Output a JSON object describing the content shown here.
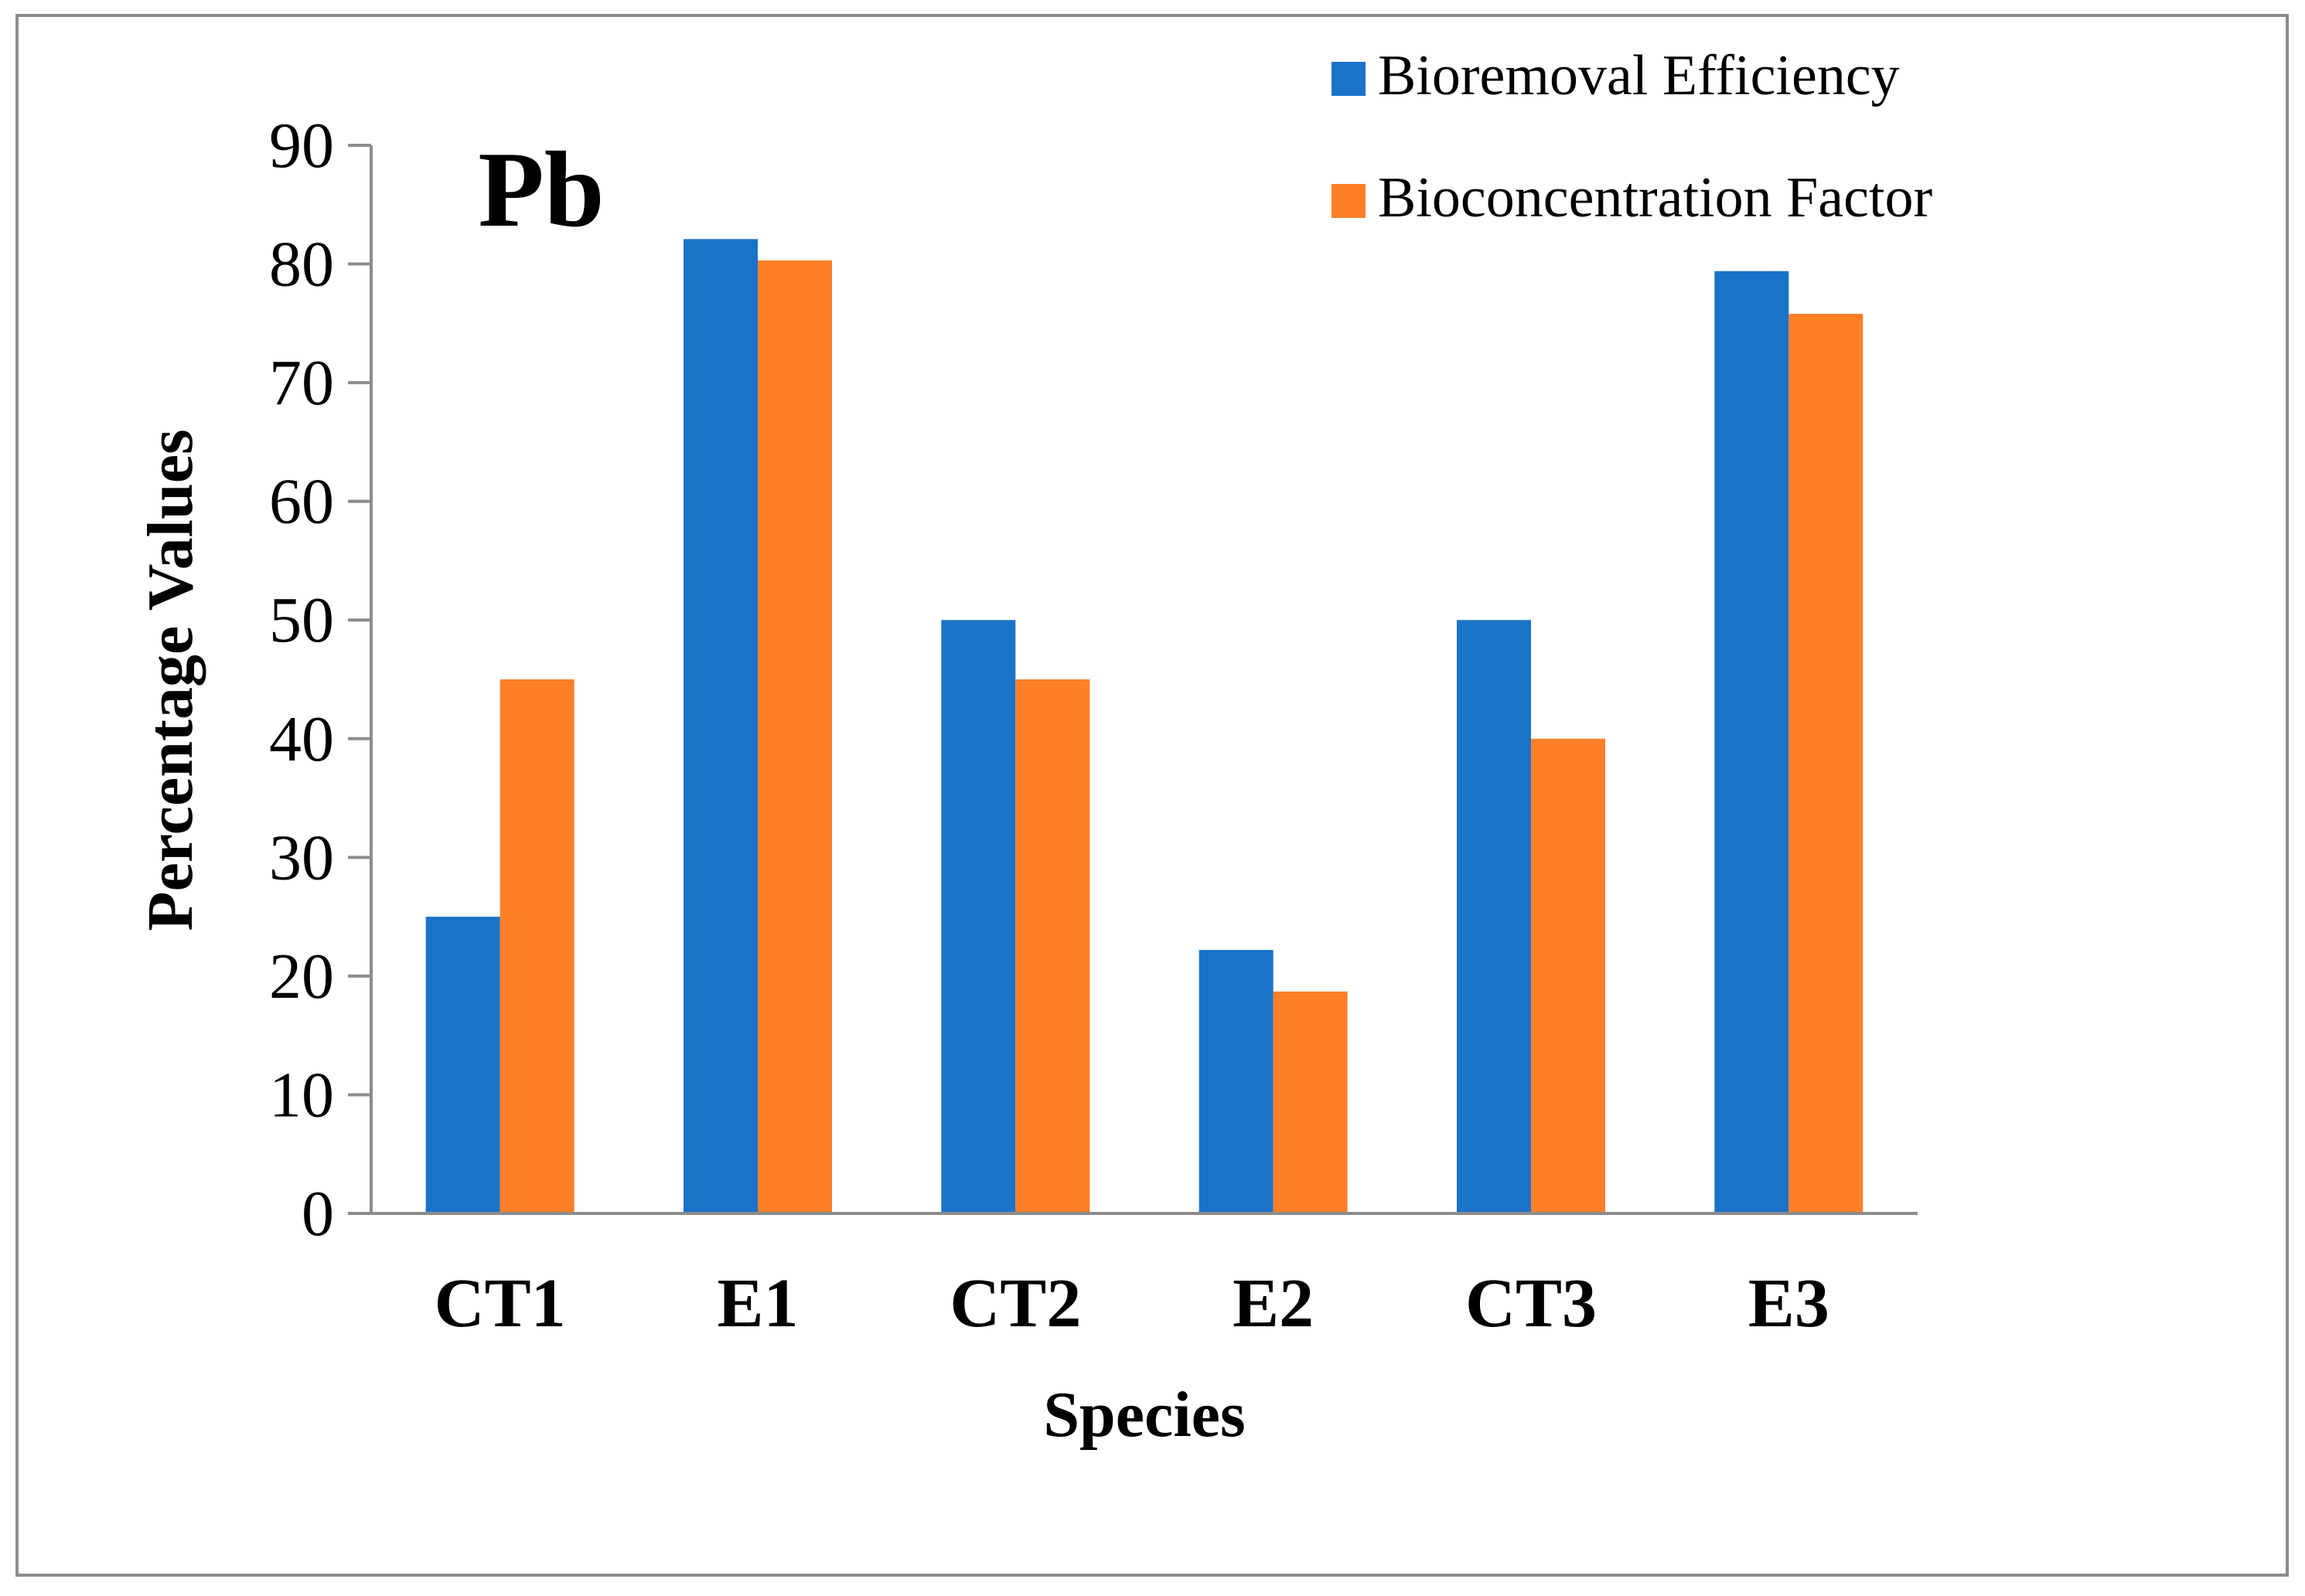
{
  "chart_data": {
    "type": "bar",
    "title": "Pb",
    "xlabel": "Species",
    "ylabel": "Percentage Values",
    "categories": [
      "CT1",
      "E1",
      "CT2",
      "E2",
      "CT3",
      "E3"
    ],
    "series": [
      {
        "name": "Bioremoval Efficiency",
        "color": "#1A73C9",
        "values": [
          25,
          82.1,
          50,
          22.2,
          50,
          79.4
        ]
      },
      {
        "name": "Bioconcentration Factor",
        "color": "#FF7F27",
        "values": [
          45,
          80.3,
          45,
          18.7,
          40,
          75.8
        ]
      }
    ],
    "ylim": [
      0,
      90
    ],
    "yticks": [
      0,
      10,
      20,
      30,
      40,
      50,
      60,
      70,
      80,
      90
    ],
    "grid": false,
    "legend_position": "top-right"
  }
}
